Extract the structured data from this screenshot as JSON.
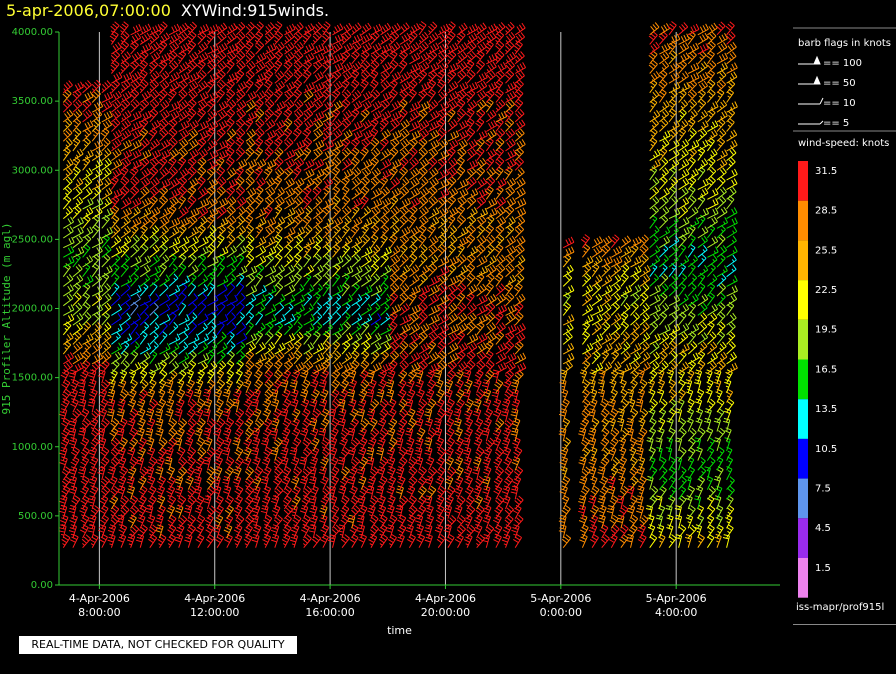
{
  "title": {
    "time": "5-apr-2006,07:00:00",
    "product": "XYWind:915winds."
  },
  "qc_note": "REAL-TIME DATA, NOT CHECKED FOR QUALITY",
  "colors": {
    "axis": "#33cc33",
    "background": "#000000",
    "gridline": "#c8c8c8"
  },
  "legend": {
    "barb_title": "barb flags in knots",
    "barb_items": [
      "== 100",
      "== 50",
      "== 10",
      "== 5"
    ],
    "speed_title": "wind-speed: knots",
    "speed_items": [
      {
        "label": "31.5",
        "color": "#ff1a1a"
      },
      {
        "label": "28.5",
        "color": "#ff8c00"
      },
      {
        "label": "25.5",
        "color": "#ffb400"
      },
      {
        "label": "22.5",
        "color": "#ffff00"
      },
      {
        "label": "19.5",
        "color": "#aaee22"
      },
      {
        "label": "16.5",
        "color": "#00e000"
      },
      {
        "label": "13.5",
        "color": "#00ffff"
      },
      {
        "label": "10.5",
        "color": "#0000ff"
      },
      {
        "label": "7.5",
        "color": "#5e95ee"
      },
      {
        "label": "4.5",
        "color": "#9a2bee"
      },
      {
        "label": "1.5",
        "color": "#ee82ee"
      }
    ],
    "footer": "iss-mapr/prof915l"
  },
  "chart_data": {
    "type": "wind-barb time-height",
    "ylabel": "915 Profiler Altitude (m agl)",
    "xlabel": "time",
    "ylim": [
      0,
      4000
    ],
    "xlim_hours": [
      6.6,
      31.6
    ],
    "y_ticks": [
      "0.00",
      "500.00",
      "1000.00",
      "1500.00",
      "2000.00",
      "2500.00",
      "3000.00",
      "3500.00",
      "4000.00"
    ],
    "x_ticks": [
      {
        "hour": 8,
        "date": "4-Apr-2006",
        "time": "8:00:00"
      },
      {
        "hour": 12,
        "date": "4-Apr-2006",
        "time": "12:00:00"
      },
      {
        "hour": 16,
        "date": "4-Apr-2006",
        "time": "16:00:00"
      },
      {
        "hour": 20,
        "date": "4-Apr-2006",
        "time": "20:00:00"
      },
      {
        "hour": 24,
        "date": "5-Apr-2006",
        "time": "0:00:00"
      },
      {
        "hour": 28,
        "date": "5-Apr-2006",
        "time": "4:00:00"
      }
    ],
    "grid_vertical": true,
    "observations": {
      "interval_minutes": 20,
      "gate_spacing_m": 70,
      "lowest_gate_m": 270,
      "gaps": [
        {
          "from_hour": 22.6,
          "to_hour": 24.0
        },
        {
          "from_hour": 24.15,
          "to_hour": 24.55
        }
      ],
      "speed_knots_bands": [
        {
          "hour_range": [
            6.6,
            8.3
          ],
          "top_m": 3600,
          "profile": [
            [
              270,
              32
            ],
            [
              1500,
              32
            ],
            [
              1900,
              20
            ],
            [
              2300,
              18
            ],
            [
              2800,
              23
            ],
            [
              3200,
              27
            ],
            [
              3600,
              32
            ]
          ]
        },
        {
          "hour_range": [
            8.3,
            13.0
          ],
          "top_m": 4000,
          "profile": [
            [
              270,
              32
            ],
            [
              1300,
              30
            ],
            [
              1700,
              14
            ],
            [
              2000,
              10
            ],
            [
              2300,
              19
            ],
            [
              2700,
              30
            ],
            [
              4000,
              34
            ]
          ]
        },
        {
          "hour_range": [
            13.0,
            18.0
          ],
          "top_m": 4000,
          "profile": [
            [
              270,
              32
            ],
            [
              1500,
              30
            ],
            [
              1900,
              13
            ],
            [
              2200,
              19
            ],
            [
              2600,
              28
            ],
            [
              4000,
              34
            ]
          ]
        },
        {
          "hour_range": [
            18.0,
            22.6
          ],
          "top_m": 4000,
          "profile": [
            [
              270,
              32
            ],
            [
              2000,
              30
            ],
            [
              2400,
              27
            ],
            [
              4000,
              34
            ]
          ]
        },
        {
          "hour_range": [
            24.0,
            27.0
          ],
          "top_m": 2500,
          "profile": [
            [
              270,
              30
            ],
            [
              1500,
              26
            ],
            [
              2100,
              22
            ],
            [
              2500,
              30
            ]
          ]
        },
        {
          "hour_range": [
            27.0,
            29.9
          ],
          "top_m": 4000,
          "profile": [
            [
              270,
              24
            ],
            [
              800,
              16
            ],
            [
              1500,
              25
            ],
            [
              2300,
              15
            ],
            [
              2900,
              22
            ],
            [
              4000,
              30
            ]
          ]
        }
      ]
    }
  }
}
